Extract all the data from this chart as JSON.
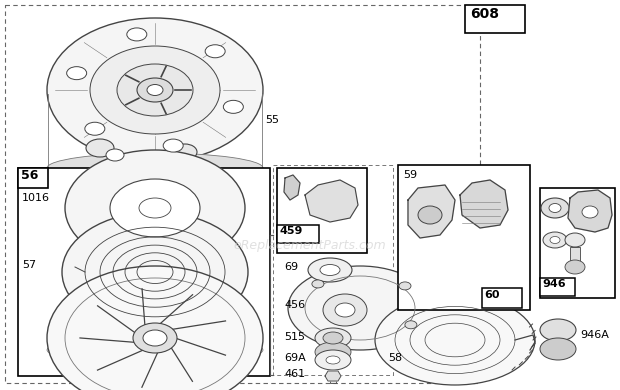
{
  "bg_color": "#ffffff",
  "watermark": "eReplacementParts.com",
  "dgray": "#555555",
  "mgray": "#888888",
  "lgray": "#cccccc"
}
